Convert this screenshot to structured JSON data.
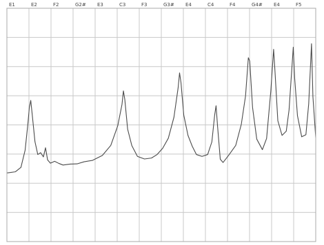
{
  "colors": {
    "background": "#ffffff",
    "frame": "#a9a9a9",
    "grid": "#c8c8c8",
    "line": "#4a4a4a",
    "text": "#444444"
  },
  "chart_data": {
    "type": "line",
    "title": "",
    "xlabel": "",
    "ylabel": "",
    "grid": true,
    "legend": "none",
    "xlim": [
      0,
      440
    ],
    "ylim": [
      0,
      100
    ],
    "x_tick_labels": [
      "E1",
      "E2",
      "F2",
      "G2#",
      "E3",
      "C3",
      "F3",
      "G3#",
      "E4",
      "C4",
      "F4",
      "G4#",
      "E4",
      "F5"
    ],
    "y_tick_labels": [
      "",
      "",
      "",
      "",
      "",
      "",
      ""
    ],
    "series": [
      {
        "name": "",
        "points": [
          [
            0,
            29.4
          ],
          [
            12,
            29.9
          ],
          [
            20,
            31.8
          ],
          [
            26,
            39.2
          ],
          [
            30,
            50.8
          ],
          [
            32,
            57.5
          ],
          [
            34,
            60.5
          ],
          [
            36,
            54.7
          ],
          [
            40,
            42.8
          ],
          [
            44,
            37.3
          ],
          [
            48,
            38.1
          ],
          [
            52,
            36.3
          ],
          [
            55,
            40.2
          ],
          [
            58,
            35.0
          ],
          [
            62,
            33.6
          ],
          [
            68,
            34.4
          ],
          [
            74,
            33.5
          ],
          [
            80,
            32.8
          ],
          [
            90,
            33.2
          ],
          [
            100,
            33.3
          ],
          [
            110,
            34.2
          ],
          [
            122,
            34.8
          ],
          [
            136,
            36.9
          ],
          [
            148,
            41.2
          ],
          [
            158,
            49.7
          ],
          [
            164,
            58.8
          ],
          [
            166,
            64.6
          ],
          [
            168,
            60.9
          ],
          [
            172,
            48.2
          ],
          [
            178,
            41.1
          ],
          [
            186,
            36.5
          ],
          [
            196,
            35.4
          ],
          [
            206,
            35.8
          ],
          [
            214,
            37.3
          ],
          [
            222,
            40.0
          ],
          [
            230,
            44.3
          ],
          [
            238,
            53.3
          ],
          [
            244,
            66.0
          ],
          [
            246,
            72.3
          ],
          [
            248,
            68.2
          ],
          [
            252,
            54.2
          ],
          [
            258,
            45.5
          ],
          [
            264,
            40.9
          ],
          [
            270,
            37.3
          ],
          [
            278,
            36.5
          ],
          [
            286,
            37.3
          ],
          [
            292,
            42.7
          ],
          [
            296,
            54.2
          ],
          [
            298,
            58.2
          ],
          [
            300,
            50.0
          ],
          [
            304,
            35.3
          ],
          [
            308,
            33.9
          ],
          [
            316,
            37.0
          ],
          [
            326,
            41.2
          ],
          [
            334,
            50.3
          ],
          [
            340,
            62.4
          ],
          [
            344,
            78.8
          ],
          [
            346,
            77.3
          ],
          [
            350,
            57.5
          ],
          [
            356,
            43.9
          ],
          [
            364,
            39.4
          ],
          [
            370,
            44.2
          ],
          [
            376,
            64.5
          ],
          [
            380,
            82.4
          ],
          [
            382,
            72.7
          ],
          [
            386,
            51.8
          ],
          [
            392,
            45.5
          ],
          [
            398,
            47.3
          ],
          [
            402,
            56.4
          ],
          [
            408,
            83.3
          ],
          [
            410,
            70.0
          ],
          [
            414,
            53.9
          ],
          [
            420,
            44.9
          ],
          [
            426,
            45.8
          ],
          [
            430,
            59.1
          ],
          [
            434,
            84.8
          ],
          [
            436,
            62.1
          ],
          [
            440,
            44.5
          ]
        ]
      }
    ]
  }
}
